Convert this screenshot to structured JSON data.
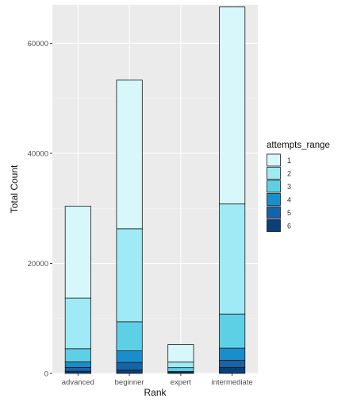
{
  "chart_data": {
    "type": "bar",
    "stacked": true,
    "categories": [
      "advanced",
      "beginner",
      "expert",
      "intermediate"
    ],
    "xlabel": "Rank",
    "ylabel": "Total Count",
    "ylim": [
      0,
      67000
    ],
    "y_ticks": [
      0,
      20000,
      40000,
      60000
    ],
    "y_tick_labels": [
      "0",
      "20000",
      "40000",
      "60000"
    ],
    "grid": true,
    "legend": {
      "title": "attempts_range",
      "placement": "right"
    },
    "series": [
      {
        "name": "1",
        "color": "#d7f7fb",
        "values": [
          16700,
          27000,
          3200,
          35800
        ]
      },
      {
        "name": "2",
        "color": "#9feaf5",
        "values": [
          9200,
          16900,
          1000,
          20000
        ]
      },
      {
        "name": "3",
        "color": "#5dd0e6",
        "values": [
          2400,
          5300,
          700,
          6200
        ]
      },
      {
        "name": "4",
        "color": "#1a8ecb",
        "values": [
          1000,
          2100,
          150,
          2200
        ]
      },
      {
        "name": "5",
        "color": "#1763a8",
        "values": [
          700,
          1400,
          150,
          1300
        ]
      },
      {
        "name": "6",
        "color": "#0b3f7a",
        "values": [
          400,
          600,
          60,
          1100
        ]
      }
    ]
  }
}
